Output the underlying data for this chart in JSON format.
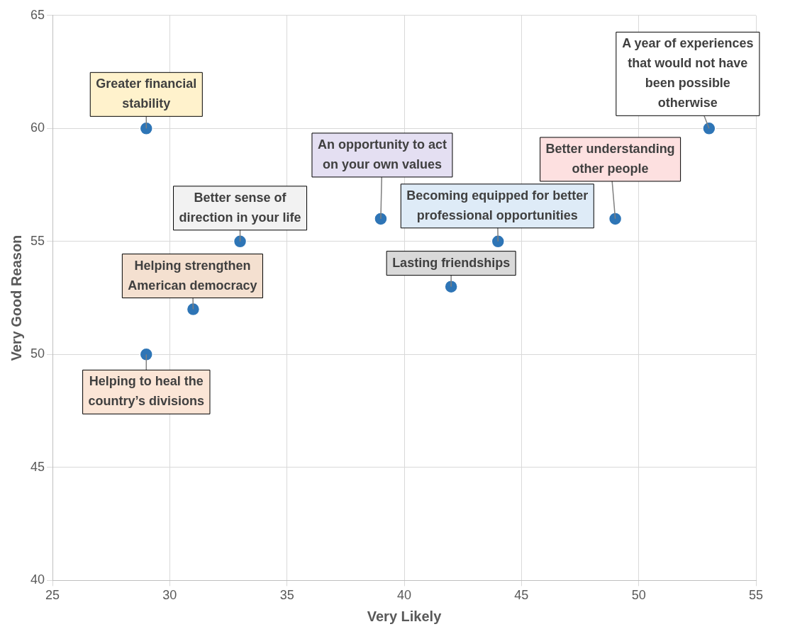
{
  "chart_data": {
    "type": "scatter",
    "xlabel": "Very Likely",
    "ylabel": "Very Good Reason",
    "x": [
      29,
      53,
      39,
      49,
      33,
      44,
      42,
      31,
      29
    ],
    "values": [
      60,
      60,
      56,
      56,
      55,
      55,
      53,
      52,
      50
    ],
    "color": "#2e75b6",
    "marker": "circle",
    "xlim": [
      25,
      55
    ],
    "xticks": [
      25,
      30,
      35,
      40,
      45,
      50,
      55
    ],
    "ylim": [
      40,
      65
    ],
    "yticks": [
      40,
      45,
      50,
      55,
      60,
      65
    ],
    "grid": true,
    "legend": false,
    "annotations": [
      {
        "text": "Greater financial stability",
        "x": 29,
        "y": 60
      },
      {
        "text": "A year of experiences that would not have been possible otherwise",
        "x": 53,
        "y": 60
      },
      {
        "text": "An opportunity to act on your own values",
        "x": 39,
        "y": 56
      },
      {
        "text": "Better understanding other people",
        "x": 49,
        "y": 56
      },
      {
        "text": "Better sense of direction in your life",
        "x": 33,
        "y": 55
      },
      {
        "text": "Becoming equipped for better professional opportunities",
        "x": 44,
        "y": 55
      },
      {
        "text": "Lasting friendships",
        "x": 42,
        "y": 53
      },
      {
        "text": "Helping strengthen American democracy",
        "x": 31,
        "y": 52
      },
      {
        "text": "Helping to heal the country’s divisions",
        "x": 29,
        "y": 50
      }
    ]
  }
}
